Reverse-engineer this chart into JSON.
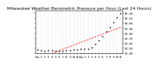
{
  "title": "Milwaukee Weather Barometric Pressure per Hour (Last 24 Hours)",
  "background_color": "#ffffff",
  "grid_color": "#aaaaaa",
  "hours": [
    0,
    1,
    2,
    3,
    4,
    5,
    6,
    7,
    8,
    9,
    10,
    11,
    12,
    13,
    14,
    15,
    16,
    17,
    18,
    19,
    20,
    21,
    22,
    23
  ],
  "pressure": [
    29.47,
    29.46,
    29.45,
    29.46,
    29.46,
    29.45,
    29.44,
    29.45,
    29.46,
    29.46,
    29.47,
    29.47,
    29.48,
    29.48,
    29.49,
    29.52,
    29.58,
    29.65,
    29.74,
    29.83,
    29.92,
    30.02,
    30.12,
    30.2
  ],
  "trend_color": "#ff0000",
  "data_color": "#000000",
  "ylim": [
    29.4,
    30.25
  ],
  "yticks": [
    29.4,
    29.5,
    29.6,
    29.7,
    29.8,
    29.9,
    30.0,
    30.1,
    30.2
  ],
  "ytick_labels": [
    "29.40",
    "29.50",
    "29.60",
    "29.70",
    "29.80",
    "29.90",
    "30.00",
    "30.10",
    "30.20"
  ],
  "xtick_labels": [
    "12a",
    "1",
    "2",
    "3",
    "4",
    "5",
    "6",
    "7",
    "8",
    "9",
    "10",
    "11",
    "12p",
    "1",
    "2",
    "3",
    "4",
    "5",
    "6",
    "7",
    "8",
    "9",
    "10",
    "11"
  ],
  "title_fontsize": 4.5,
  "tick_fontsize": 3.0,
  "marker_size": 1.2,
  "line_width": 0.6
}
